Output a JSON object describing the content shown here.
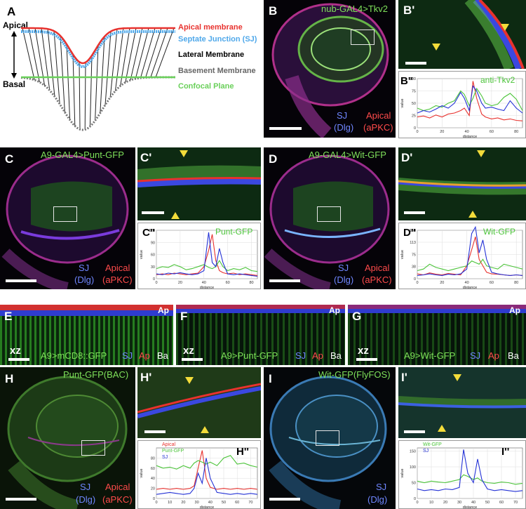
{
  "panels": {
    "A": {
      "label": "A",
      "apical": "Apical",
      "basal": "Basal",
      "legend": [
        "Apical membrane",
        "Septate Junction (SJ)",
        "Lateral Membrane",
        "Basement Membrane",
        "Confocal Plane"
      ]
    },
    "B": {
      "label": "B",
      "title": "nub-GAL4>Tkv2",
      "sj": "SJ",
      "dlg": "(Dlg)",
      "apical": "Apical",
      "apkc": "(aPKC)"
    },
    "B1": {
      "label": "B'"
    },
    "B2": {
      "label": "B''",
      "marker": "anti-Tkv2"
    },
    "C": {
      "label": "C",
      "title": "A9-GAL4>Punt-GFP",
      "sj": "SJ",
      "dlg": "(Dlg)",
      "apical": "Apical",
      "apkc": "(aPKC)"
    },
    "C1": {
      "label": "C'"
    },
    "C2": {
      "label": "C''",
      "marker": "Punt-GFP"
    },
    "D": {
      "label": "D",
      "title": "A9-GAL4>Wit-GFP",
      "sj": "SJ",
      "dlg": "(Dlg)",
      "apical": "Apical",
      "apkc": "(aPKC)"
    },
    "D1": {
      "label": "D'"
    },
    "D2": {
      "label": "D''",
      "marker": "Wit-GFP"
    },
    "E": {
      "label": "E",
      "ap": "Ap",
      "xz": "xz",
      "line": "A9>mCD8::GFP",
      "sj": "SJ",
      "apm": "Ap",
      "ba": "Ba"
    },
    "F": {
      "label": "F",
      "ap": "Ap",
      "xz": "xz",
      "line": "A9>Punt-GFP",
      "sj": "SJ",
      "apm": "Ap",
      "ba": "Ba"
    },
    "G": {
      "label": "G",
      "ap": "Ap",
      "xz": "xz",
      "line": "A9>Wit-GFP",
      "sj": "SJ",
      "apm": "Ap",
      "ba": "Ba"
    },
    "H": {
      "label": "H",
      "title": "Punt-GFP(BAC)",
      "sj": "SJ",
      "dlg": "(Dlg)",
      "apical": "Apical",
      "apkc": "(aPKC)"
    },
    "H1": {
      "label": "H'"
    },
    "H2": {
      "label": "H''",
      "legend": [
        "Apical",
        "Punt-GFP",
        "SJ"
      ]
    },
    "I": {
      "label": "I",
      "title": "Wit-GFP(FlyFOS)",
      "sj": "SJ",
      "dlg": "(Dlg)"
    },
    "I1": {
      "label": "I'"
    },
    "I2": {
      "label": "I''",
      "legend": [
        "Wit-GFP",
        "SJ"
      ]
    }
  },
  "colors": {
    "red": "#e8322e",
    "green": "#4cc43a",
    "blue": "#2432d6",
    "septate": "#4fa8ea",
    "basement": "#777777",
    "confocal": "#6ad05a"
  },
  "chart_data": [
    {
      "id": "B''",
      "type": "line",
      "xlabel": "distance",
      "ylabel": "value",
      "xlim": [
        0,
        85
      ],
      "ylim": [
        0,
        100
      ],
      "xticks": [
        0,
        20,
        40,
        60,
        80
      ],
      "series": [
        {
          "color": "red",
          "x": [
            0,
            5,
            10,
            15,
            20,
            25,
            30,
            35,
            38,
            42,
            45,
            48,
            52,
            55,
            60,
            65,
            70,
            75,
            80,
            85
          ],
          "values": [
            22,
            24,
            20,
            26,
            22,
            28,
            30,
            35,
            40,
            25,
            95,
            60,
            28,
            22,
            18,
            20,
            16,
            18,
            15,
            14
          ]
        },
        {
          "color": "green",
          "x": [
            0,
            5,
            10,
            15,
            20,
            25,
            30,
            35,
            38,
            42,
            45,
            48,
            52,
            55,
            60,
            65,
            70,
            75,
            80,
            85
          ],
          "values": [
            40,
            35,
            38,
            45,
            42,
            50,
            55,
            75,
            68,
            45,
            60,
            80,
            65,
            50,
            45,
            48,
            62,
            70,
            58,
            35
          ]
        },
        {
          "color": "blue",
          "x": [
            0,
            5,
            10,
            15,
            20,
            25,
            30,
            35,
            38,
            42,
            45,
            48,
            52,
            55,
            60,
            65,
            70,
            75,
            80,
            85
          ],
          "values": [
            30,
            35,
            32,
            38,
            45,
            40,
            50,
            72,
            60,
            35,
            85,
            75,
            50,
            40,
            42,
            38,
            35,
            55,
            40,
            30
          ]
        }
      ]
    },
    {
      "id": "C''",
      "type": "line",
      "xlabel": "distance",
      "ylabel": "value",
      "xlim": [
        0,
        85
      ],
      "ylim": [
        0,
        120
      ],
      "xticks": [
        0,
        20,
        40,
        60,
        80
      ],
      "series": [
        {
          "color": "red",
          "x": [
            0,
            5,
            10,
            15,
            20,
            25,
            30,
            35,
            40,
            44,
            47,
            50,
            53,
            56,
            60,
            65,
            70,
            75,
            80,
            85
          ],
          "values": [
            10,
            12,
            10,
            14,
            12,
            10,
            12,
            14,
            30,
            70,
            110,
            45,
            20,
            15,
            12,
            14,
            10,
            12,
            10,
            8
          ]
        },
        {
          "color": "green",
          "x": [
            0,
            5,
            10,
            15,
            20,
            25,
            30,
            35,
            40,
            44,
            47,
            50,
            53,
            56,
            60,
            65,
            70,
            75,
            80,
            85
          ],
          "values": [
            25,
            30,
            28,
            35,
            30,
            22,
            25,
            30,
            35,
            28,
            25,
            30,
            45,
            30,
            20,
            25,
            22,
            28,
            20,
            18
          ]
        },
        {
          "color": "blue",
          "x": [
            0,
            5,
            10,
            15,
            20,
            25,
            30,
            35,
            40,
            44,
            47,
            50,
            53,
            56,
            60,
            65,
            70,
            75,
            80,
            85
          ],
          "values": [
            12,
            10,
            14,
            12,
            15,
            12,
            10,
            12,
            20,
            115,
            40,
            30,
            75,
            40,
            12,
            10,
            12,
            10,
            8,
            6
          ]
        }
      ]
    },
    {
      "id": "D''",
      "type": "line",
      "xlabel": "distance",
      "ylabel": "value",
      "xlim": [
        0,
        85
      ],
      "ylim": [
        0,
        150
      ],
      "xticks": [
        0,
        20,
        40,
        60,
        80
      ],
      "series": [
        {
          "color": "red",
          "x": [
            0,
            5,
            10,
            15,
            20,
            25,
            30,
            35,
            40,
            44,
            47,
            50,
            53,
            56,
            60,
            65,
            70,
            75,
            80,
            85
          ],
          "values": [
            15,
            12,
            18,
            14,
            12,
            16,
            14,
            12,
            40,
            90,
            130,
            60,
            40,
            20,
            15,
            14,
            12,
            10,
            12,
            10
          ]
        },
        {
          "color": "green",
          "x": [
            0,
            5,
            10,
            15,
            20,
            25,
            30,
            35,
            40,
            44,
            47,
            50,
            53,
            56,
            60,
            65,
            70,
            75,
            80,
            85
          ],
          "values": [
            25,
            30,
            45,
            35,
            30,
            25,
            30,
            35,
            40,
            55,
            50,
            45,
            60,
            40,
            35,
            30,
            45,
            40,
            35,
            30
          ]
        },
        {
          "color": "blue",
          "x": [
            0,
            5,
            10,
            15,
            20,
            25,
            30,
            35,
            40,
            44,
            47,
            50,
            53,
            56,
            60,
            65,
            70,
            75,
            80,
            85
          ],
          "values": [
            10,
            12,
            15,
            12,
            10,
            14,
            12,
            15,
            30,
            140,
            160,
            80,
            120,
            60,
            20,
            15,
            12,
            10,
            12,
            10
          ]
        }
      ]
    },
    {
      "id": "H''",
      "type": "line",
      "xlabel": "distance",
      "ylabel": "value",
      "xlim": [
        0,
        75
      ],
      "ylim": [
        0,
        100
      ],
      "xticks": [
        0,
        10,
        20,
        30,
        40,
        50,
        60,
        70
      ],
      "yticks": [
        0,
        20,
        40,
        60,
        80
      ],
      "series": [
        {
          "name": "Apical",
          "color": "red",
          "x": [
            0,
            5,
            10,
            15,
            20,
            25,
            28,
            31,
            34,
            37,
            40,
            45,
            50,
            55,
            60,
            65,
            70,
            75
          ],
          "values": [
            18,
            20,
            18,
            20,
            18,
            20,
            25,
            60,
            95,
            40,
            22,
            18,
            20,
            18,
            20,
            18,
            20,
            18
          ]
        },
        {
          "name": "Punt-GFP",
          "color": "green",
          "x": [
            0,
            5,
            10,
            15,
            20,
            25,
            28,
            31,
            34,
            37,
            40,
            45,
            50,
            55,
            60,
            65,
            70,
            75
          ],
          "values": [
            65,
            60,
            62,
            58,
            65,
            60,
            70,
            75,
            72,
            68,
            72,
            65,
            80,
            85,
            68,
            70,
            65,
            62
          ]
        },
        {
          "name": "SJ",
          "color": "blue",
          "x": [
            0,
            5,
            10,
            15,
            20,
            25,
            28,
            31,
            34,
            37,
            40,
            45,
            50,
            55,
            60,
            65,
            70,
            75
          ],
          "values": [
            8,
            10,
            12,
            10,
            8,
            10,
            20,
            50,
            30,
            80,
            40,
            12,
            10,
            8,
            10,
            8,
            10,
            8
          ]
        }
      ]
    },
    {
      "id": "I''",
      "type": "line",
      "xlabel": "distance",
      "ylabel": "value",
      "xlim": [
        0,
        75
      ],
      "ylim": [
        0,
        160
      ],
      "xticks": [
        0,
        10,
        20,
        30,
        40,
        50,
        60,
        70
      ],
      "yticks": [
        0,
        50,
        100,
        150
      ],
      "series": [
        {
          "name": "Wit-GFP",
          "color": "green",
          "x": [
            0,
            5,
            10,
            15,
            20,
            25,
            30,
            33,
            36,
            40,
            43,
            46,
            50,
            55,
            60,
            65,
            70,
            75
          ],
          "values": [
            55,
            50,
            55,
            52,
            50,
            55,
            60,
            75,
            70,
            60,
            65,
            55,
            50,
            48,
            52,
            50,
            45,
            48
          ]
        },
        {
          "name": "SJ",
          "color": "blue",
          "x": [
            0,
            5,
            10,
            15,
            20,
            25,
            30,
            33,
            36,
            40,
            43,
            46,
            50,
            55,
            60,
            65,
            70,
            75
          ],
          "values": [
            30,
            25,
            28,
            25,
            30,
            28,
            35,
            155,
            80,
            50,
            125,
            60,
            30,
            25,
            28,
            25,
            22,
            25
          ]
        }
      ]
    }
  ]
}
